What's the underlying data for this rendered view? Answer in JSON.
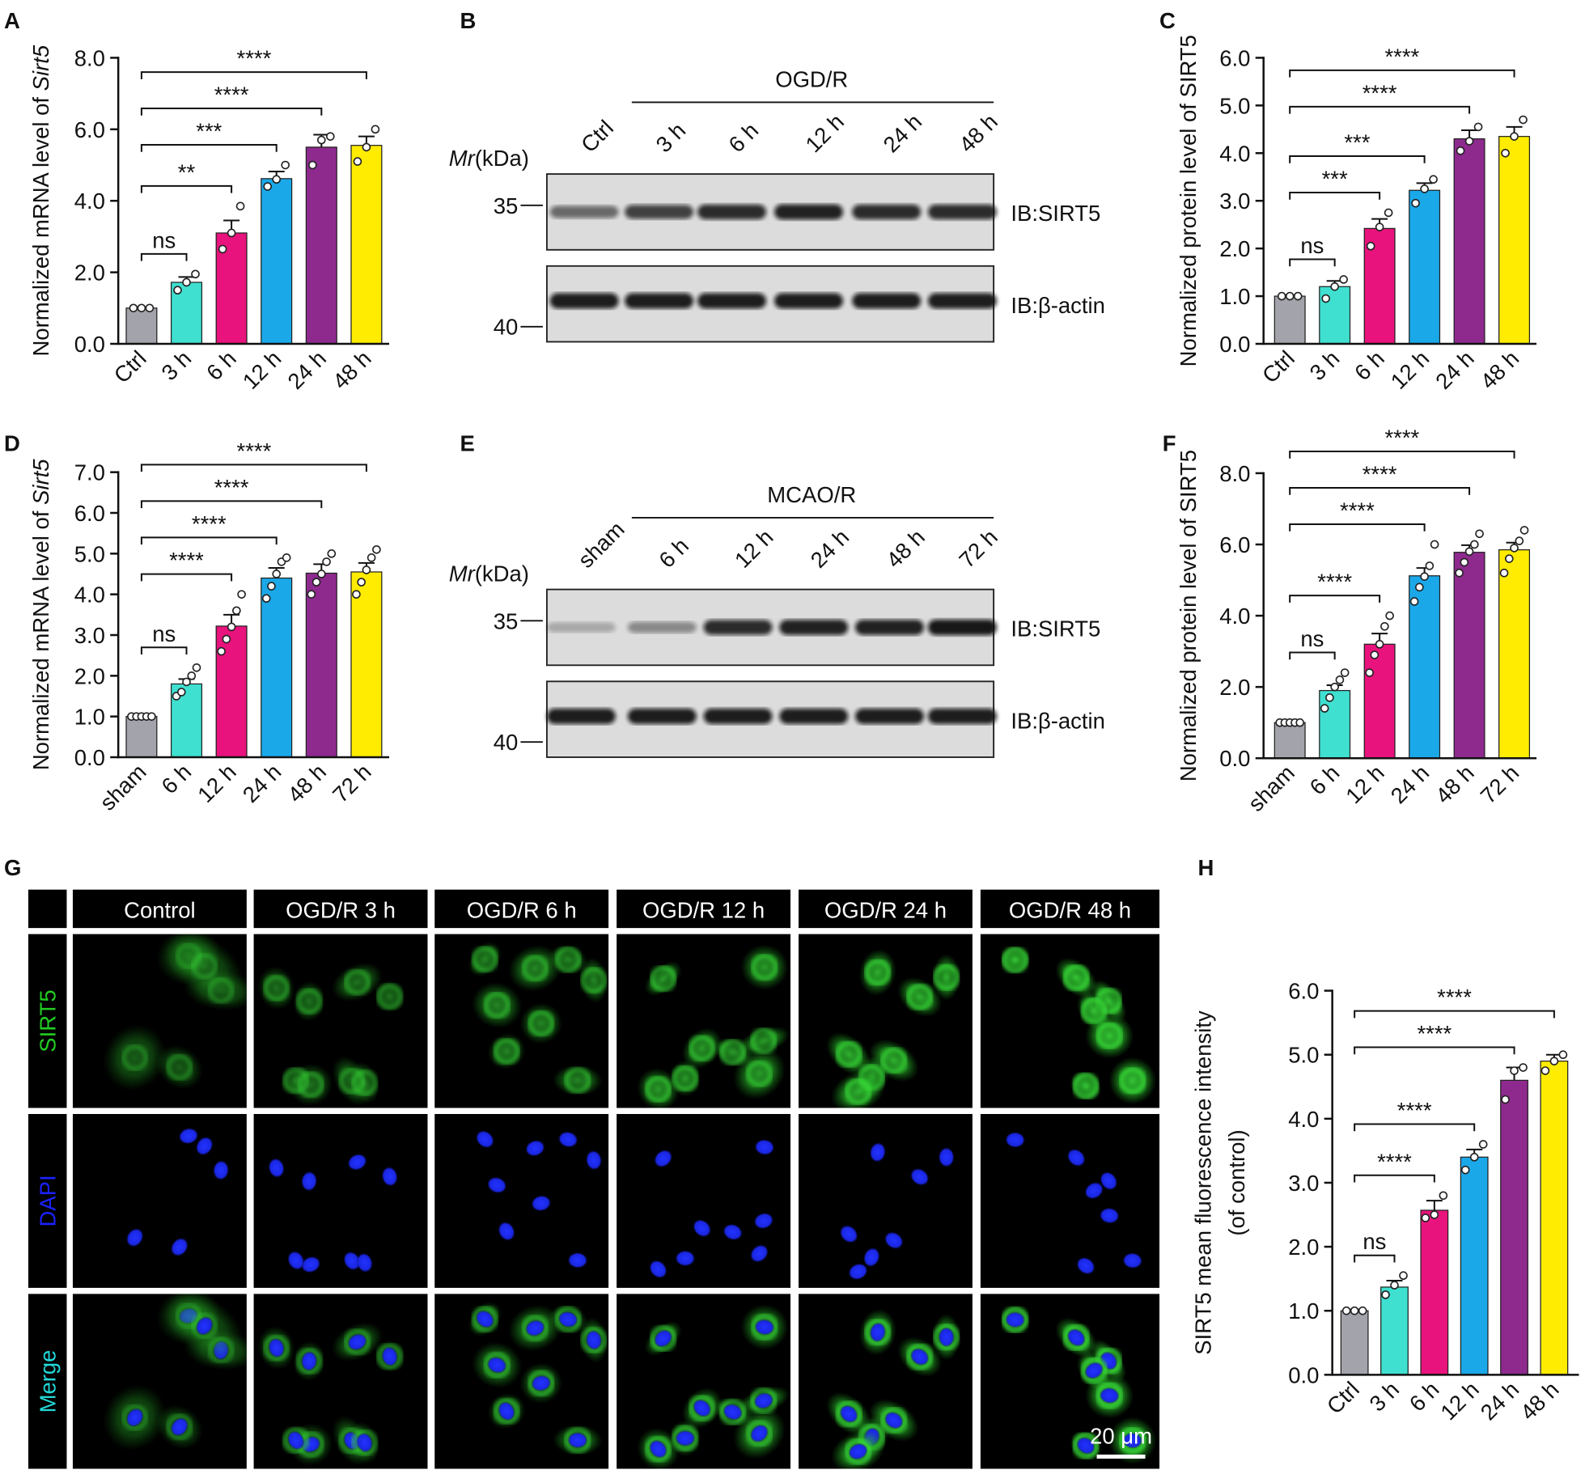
{
  "chart_data": [
    {
      "type": "bar",
      "panel": "A",
      "ylabel": "Normalized mRNA level of ",
      "ylabel_italic": "Sirt5",
      "categories": [
        "Ctrl",
        "3 h",
        "6 h",
        "12 h",
        "24 h",
        "48 h"
      ],
      "colors": [
        "#a3a3ab",
        "#3fe0d0",
        "#e8137c",
        "#1ba8e8",
        "#8e2a8e",
        "#ffec00"
      ],
      "values": [
        1.0,
        1.72,
        3.1,
        4.62,
        5.5,
        5.55
      ],
      "errors": [
        0.02,
        0.15,
        0.35,
        0.2,
        0.35,
        0.25
      ],
      "points": [
        [
          1,
          1,
          1
        ],
        [
          1.5,
          1.72,
          1.95
        ],
        [
          2.65,
          3.1,
          3.85
        ],
        [
          4.4,
          4.6,
          5.0
        ],
        [
          5.0,
          5.7,
          5.8
        ],
        [
          5.1,
          5.5,
          6.0
        ]
      ],
      "significance": [
        {
          "from": 0,
          "to": 1,
          "label": "ns"
        },
        {
          "from": 0,
          "to": 2,
          "label": "**"
        },
        {
          "from": 0,
          "to": 3,
          "label": "***"
        },
        {
          "from": 0,
          "to": 4,
          "label": "****"
        },
        {
          "from": 0,
          "to": 5,
          "label": "****"
        }
      ],
      "ylim": [
        0,
        8
      ],
      "yticks": [
        {
          "value": 0,
          "label": "0.0"
        },
        {
          "value": 2,
          "label": "2.0"
        },
        {
          "value": 4,
          "label": "4.0"
        },
        {
          "value": 6,
          "label": "6.0"
        },
        {
          "value": 8,
          "label": "8.0"
        }
      ]
    },
    {
      "type": "bar",
      "panel": "C",
      "ylabel": "Normalized protein level of SIRT5",
      "categories": [
        "Ctrl",
        "3 h",
        "6 h",
        "12 h",
        "24 h",
        "48 h"
      ],
      "colors": [
        "#a3a3ab",
        "#3fe0d0",
        "#e8137c",
        "#1ba8e8",
        "#8e2a8e",
        "#ffec00"
      ],
      "values": [
        1.0,
        1.2,
        2.42,
        3.22,
        4.3,
        4.35
      ],
      "errors": [
        0.02,
        0.12,
        0.2,
        0.15,
        0.18,
        0.2
      ],
      "points": [
        [
          1,
          1,
          1
        ],
        [
          0.95,
          1.2,
          1.35
        ],
        [
          2.05,
          2.45,
          2.75
        ],
        [
          2.95,
          3.25,
          3.45
        ],
        [
          4.05,
          4.25,
          4.55
        ],
        [
          4.0,
          4.35,
          4.7
        ]
      ],
      "significance": [
        {
          "from": 0,
          "to": 1,
          "label": "ns"
        },
        {
          "from": 0,
          "to": 2,
          "label": "***"
        },
        {
          "from": 0,
          "to": 3,
          "label": "***"
        },
        {
          "from": 0,
          "to": 4,
          "label": "****"
        },
        {
          "from": 0,
          "to": 5,
          "label": "****"
        }
      ],
      "ylim": [
        0,
        6
      ],
      "yticks": [
        {
          "value": 0,
          "label": "0.0"
        },
        {
          "value": 1,
          "label": "1.0"
        },
        {
          "value": 2,
          "label": "2.0"
        },
        {
          "value": 3,
          "label": "3.0"
        },
        {
          "value": 4,
          "label": "4.0"
        },
        {
          "value": 5,
          "label": "5.0"
        },
        {
          "value": 6,
          "label": "6.0"
        }
      ]
    },
    {
      "type": "bar",
      "panel": "D",
      "ylabel": "Normalized mRNA level of ",
      "ylabel_italic": "Sirt5",
      "categories": [
        "sham",
        "6 h",
        "12 h",
        "24 h",
        "48 h",
        "72 h"
      ],
      "colors": [
        "#a3a3ab",
        "#3fe0d0",
        "#e8137c",
        "#1ba8e8",
        "#8e2a8e",
        "#ffec00"
      ],
      "values": [
        1.0,
        1.8,
        3.22,
        4.4,
        4.52,
        4.55
      ],
      "errors": [
        0.02,
        0.12,
        0.28,
        0.25,
        0.22,
        0.22
      ],
      "points": [
        [
          1,
          1,
          1,
          1,
          1
        ],
        [
          1.5,
          1.6,
          1.85,
          2.0,
          2.2
        ],
        [
          2.6,
          2.9,
          3.2,
          3.6,
          4.0
        ],
        [
          3.9,
          4.2,
          4.5,
          4.8,
          4.9
        ],
        [
          4.0,
          4.3,
          4.5,
          4.8,
          5.0
        ],
        [
          4.0,
          4.3,
          4.6,
          4.9,
          5.1
        ]
      ],
      "significance": [
        {
          "from": 0,
          "to": 1,
          "label": "ns"
        },
        {
          "from": 0,
          "to": 2,
          "label": "****"
        },
        {
          "from": 0,
          "to": 3,
          "label": "****"
        },
        {
          "from": 0,
          "to": 4,
          "label": "****"
        },
        {
          "from": 0,
          "to": 5,
          "label": "****"
        }
      ],
      "ylim": [
        0,
        7
      ],
      "yticks": [
        {
          "value": 0,
          "label": "0.0"
        },
        {
          "value": 1,
          "label": "1.0"
        },
        {
          "value": 2,
          "label": "2.0"
        },
        {
          "value": 3,
          "label": "3.0"
        },
        {
          "value": 4,
          "label": "4.0"
        },
        {
          "value": 5,
          "label": "5.0"
        },
        {
          "value": 6,
          "label": "6.0"
        },
        {
          "value": 7,
          "label": "7.0"
        }
      ]
    },
    {
      "type": "bar",
      "panel": "F",
      "ylabel": "Normalized protein level of SIRT5",
      "categories": [
        "sham",
        "6 h",
        "12 h",
        "24 h",
        "48 h",
        "72 h"
      ],
      "colors": [
        "#a3a3ab",
        "#3fe0d0",
        "#e8137c",
        "#1ba8e8",
        "#8e2a8e",
        "#ffec00"
      ],
      "values": [
        1.0,
        1.9,
        3.2,
        5.12,
        5.78,
        5.85
      ],
      "errors": [
        0.02,
        0.15,
        0.3,
        0.22,
        0.2,
        0.2
      ],
      "points": [
        [
          1,
          1,
          1,
          1,
          1
        ],
        [
          1.4,
          1.7,
          2.0,
          2.2,
          2.4
        ],
        [
          2.4,
          2.9,
          3.2,
          3.7,
          4.0
        ],
        [
          4.4,
          4.8,
          5.1,
          5.4,
          6.0
        ],
        [
          5.2,
          5.5,
          5.8,
          6.0,
          6.3
        ],
        [
          5.2,
          5.6,
          5.9,
          6.1,
          6.4
        ]
      ],
      "significance": [
        {
          "from": 0,
          "to": 1,
          "label": "ns"
        },
        {
          "from": 0,
          "to": 2,
          "label": "****"
        },
        {
          "from": 0,
          "to": 3,
          "label": "****"
        },
        {
          "from": 0,
          "to": 4,
          "label": "****"
        },
        {
          "from": 0,
          "to": 5,
          "label": "****"
        }
      ],
      "ylim": [
        0,
        8
      ],
      "yticks": [
        {
          "value": 0,
          "label": "0.0"
        },
        {
          "value": 2,
          "label": "2.0"
        },
        {
          "value": 4,
          "label": "4.0"
        },
        {
          "value": 6,
          "label": "6.0"
        },
        {
          "value": 8,
          "label": "8.0"
        }
      ]
    },
    {
      "type": "bar",
      "panel": "H",
      "ylabel": "SIRT5 mean fluorescence intensity",
      "ylabel_line2": "(of control)",
      "categories": [
        "Ctrl",
        "3 h",
        "6 h",
        "12 h",
        "24 h",
        "48 h"
      ],
      "colors": [
        "#a3a3ab",
        "#3fe0d0",
        "#e8137c",
        "#1ba8e8",
        "#8e2a8e",
        "#ffec00"
      ],
      "values": [
        1.0,
        1.37,
        2.57,
        3.4,
        4.6,
        4.9
      ],
      "errors": [
        0.02,
        0.1,
        0.15,
        0.12,
        0.2,
        0.1
      ],
      "points": [
        [
          1,
          1,
          1
        ],
        [
          1.25,
          1.4,
          1.55
        ],
        [
          2.45,
          2.5,
          2.8
        ],
        [
          3.2,
          3.4,
          3.6
        ],
        [
          4.3,
          4.75,
          4.8
        ],
        [
          4.75,
          4.9,
          5.0
        ]
      ],
      "significance": [
        {
          "from": 0,
          "to": 1,
          "label": "ns"
        },
        {
          "from": 0,
          "to": 2,
          "label": "****"
        },
        {
          "from": 0,
          "to": 3,
          "label": "****"
        },
        {
          "from": 0,
          "to": 4,
          "label": "****"
        },
        {
          "from": 0,
          "to": 5,
          "label": "****"
        }
      ],
      "ylim": [
        0,
        6
      ],
      "yticks": [
        {
          "value": 0,
          "label": "0.0"
        },
        {
          "value": 1,
          "label": "1.0"
        },
        {
          "value": 2,
          "label": "2.0"
        },
        {
          "value": 3,
          "label": "3.0"
        },
        {
          "value": 4,
          "label": "4.0"
        },
        {
          "value": 5,
          "label": "5.0"
        },
        {
          "value": 6,
          "label": "6.0"
        }
      ]
    }
  ],
  "blots": [
    {
      "panel": "B",
      "condition": "OGD/R",
      "lanes": [
        "Ctrl",
        "3 h",
        "6 h",
        "12 h",
        "24 h",
        "48 h"
      ],
      "mr_italic": "Mr",
      "mr_unit": "(kDa)",
      "markers": [
        "35",
        "40"
      ],
      "rows": [
        "IB:SIRT5",
        "IB:β-actin"
      ]
    },
    {
      "panel": "E",
      "condition": "MCAO/R",
      "lanes": [
        "sham",
        "6 h",
        "12 h",
        "24 h",
        "48 h",
        "72 h"
      ],
      "mr_italic": "Mr",
      "mr_unit": "(kDa)",
      "markers": [
        "35",
        "40"
      ],
      "rows": [
        "IB:SIRT5",
        "IB:β-actin"
      ]
    }
  ],
  "micrographs": {
    "panel": "G",
    "columns": [
      "Control",
      "OGD/R 3 h",
      "OGD/R 6 h",
      "OGD/R 12 h",
      "OGD/R 24 h",
      "OGD/R 48 h"
    ],
    "rows": [
      "SIRT5",
      "DAPI",
      "Merge"
    ],
    "scale_bar": "20 μm"
  }
}
